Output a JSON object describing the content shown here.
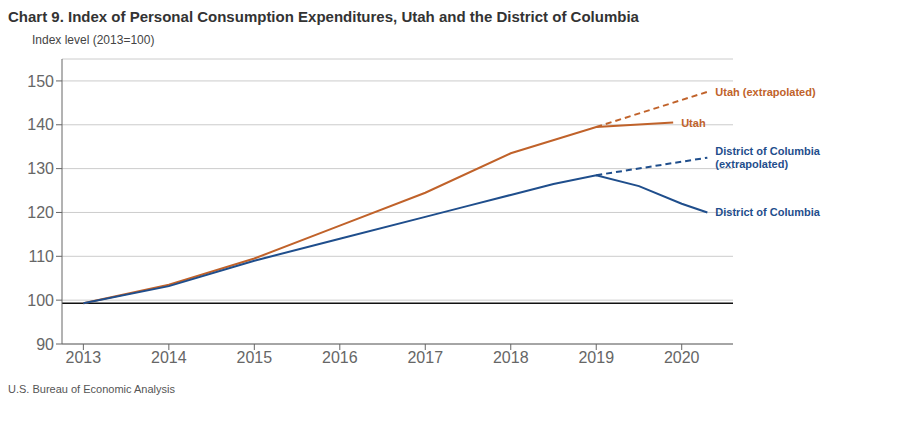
{
  "chart_data": {
    "type": "line",
    "title": "Chart 9. Index of Personal Consumption Expenditures, Utah and the District of Columbia",
    "ylabel": "Index level (2013=100)",
    "footnote": "U.S. Bureau of Economic Analysis",
    "series": [
      {
        "name": "Utah",
        "color": "#c0622a",
        "line_style": "solid",
        "x": [
          2013,
          2014,
          2015,
          2016,
          2017,
          2018,
          2019,
          2019.9
        ],
        "values": [
          99.3,
          103.5,
          109.5,
          117.0,
          124.5,
          133.5,
          139.5,
          140.5
        ]
      },
      {
        "name": "Utah (extrapolated)",
        "color": "#c0622a",
        "line_style": "dashed",
        "x": [
          2019,
          2020.3
        ],
        "values": [
          139.5,
          147.5
        ]
      },
      {
        "name": "District of Columbia",
        "color": "#1f4e8c",
        "line_style": "solid",
        "x": [
          2013,
          2014,
          2015,
          2016,
          2017,
          2017.5,
          2018,
          2018.5,
          2019,
          2019.5,
          2020,
          2020.3
        ],
        "values": [
          99.3,
          103.2,
          109.0,
          114.0,
          119.0,
          121.5,
          124.0,
          126.5,
          128.5,
          126.0,
          122.0,
          120.0
        ]
      },
      {
        "name": "District of Columbia\n(extrapolated)",
        "color": "#1f4e8c",
        "line_style": "dashed",
        "x": [
          2019,
          2020.3
        ],
        "values": [
          128.5,
          132.5
        ]
      }
    ],
    "reference_line": {
      "y": 99.3,
      "color": "#111111"
    },
    "xlim": [
      2012.75,
      2020.6
    ],
    "xticks": [
      2013,
      2014,
      2015,
      2016,
      2017,
      2018,
      2019,
      2020
    ],
    "ylim": [
      90,
      155
    ],
    "yticks": [
      90,
      100,
      110,
      120,
      130,
      140,
      150
    ],
    "grid": true
  }
}
